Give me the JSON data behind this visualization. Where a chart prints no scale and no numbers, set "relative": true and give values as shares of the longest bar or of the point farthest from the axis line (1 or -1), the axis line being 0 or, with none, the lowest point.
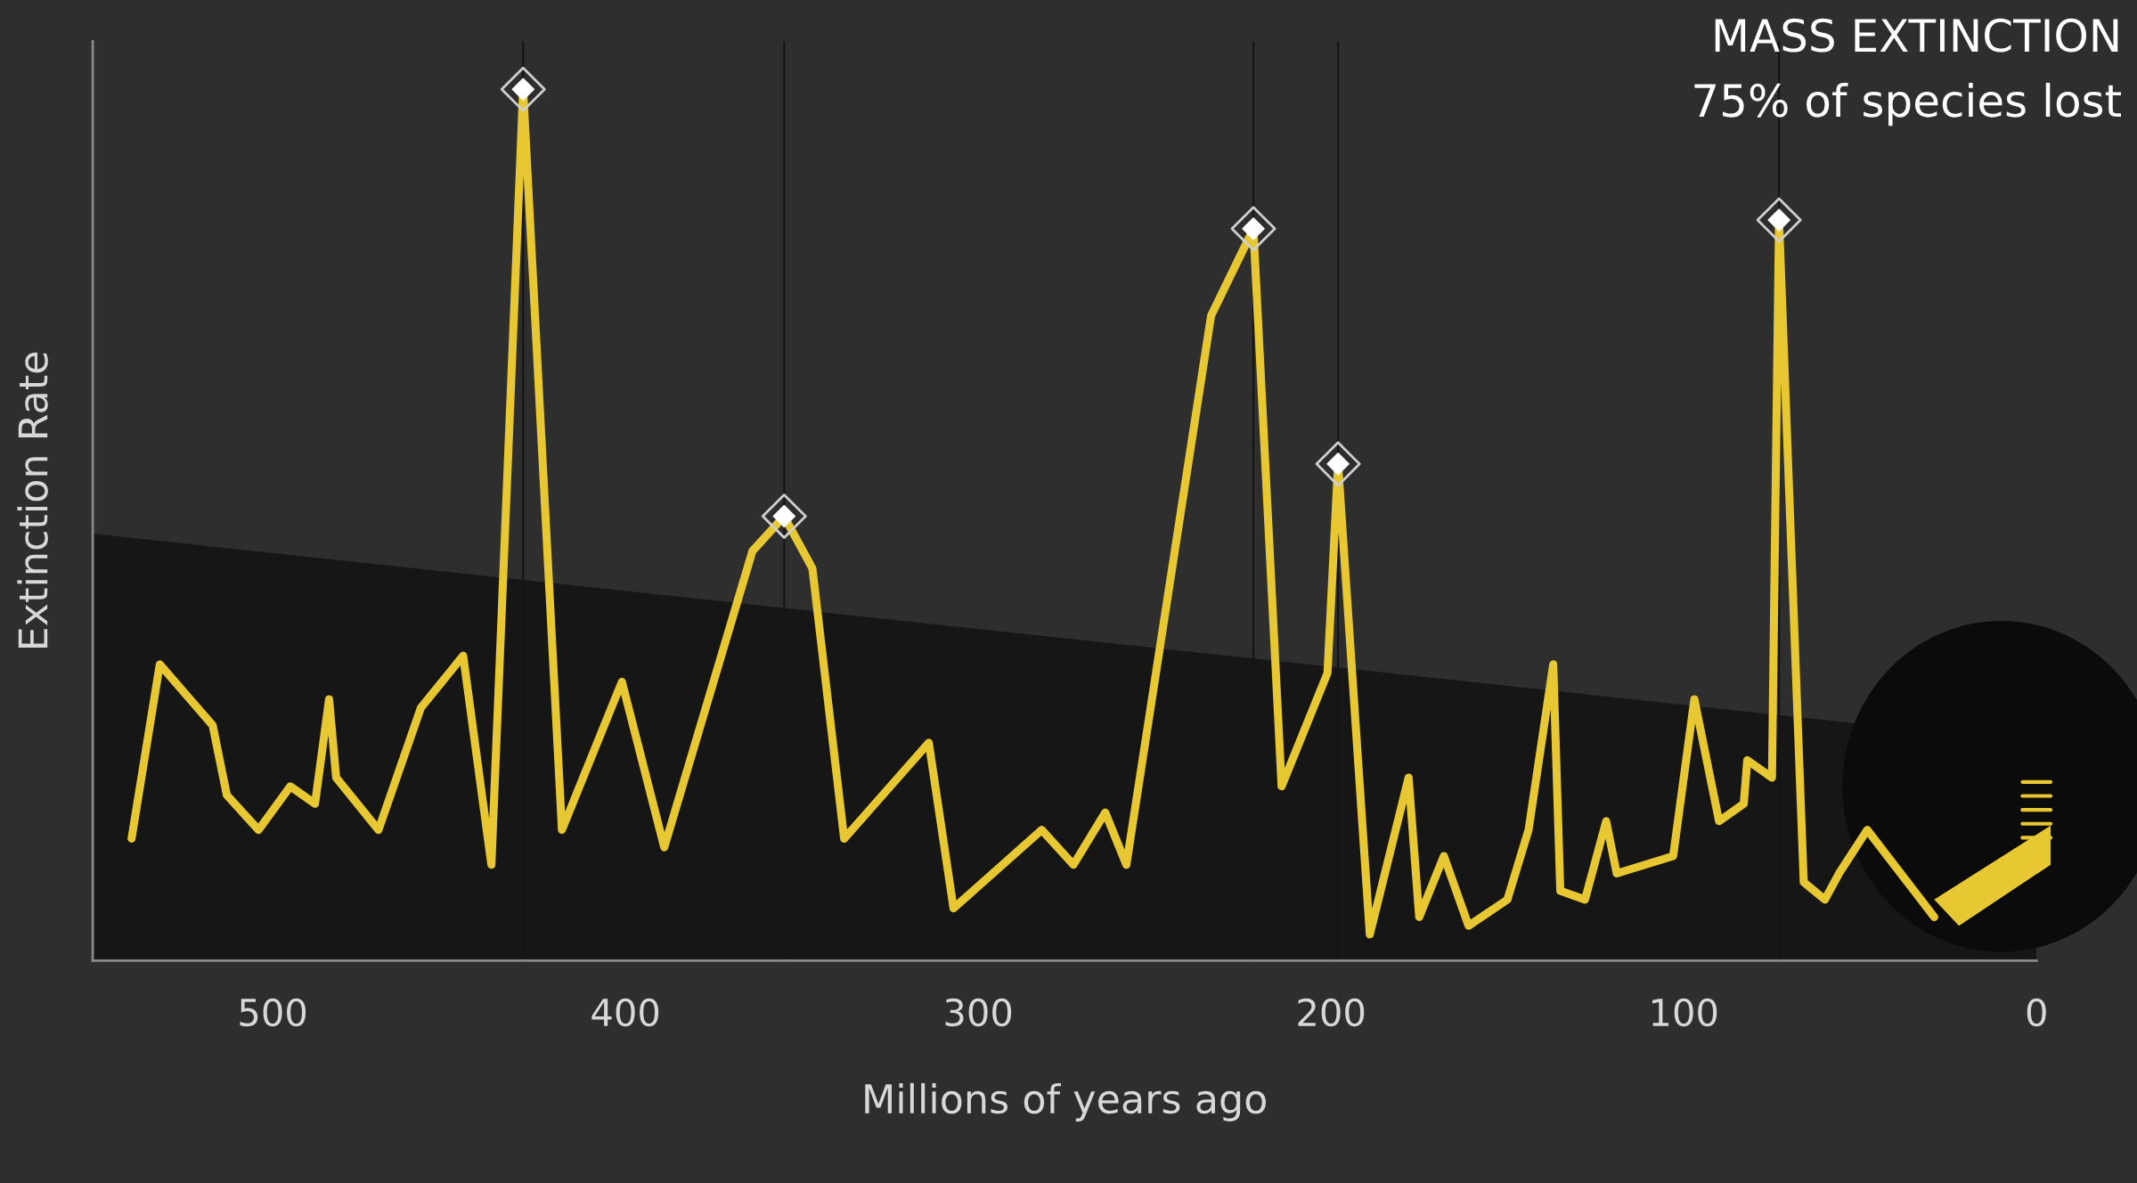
{
  "chart_data": {
    "type": "line",
    "relative": true,
    "xlabel": "Millions of years ago",
    "ylabel": "Extinction Rate",
    "annotations": [
      "MASS EXTINCTION",
      "75% of species lost"
    ],
    "xlim": [
      551,
      0
    ],
    "xticks": [
      500,
      400,
      300,
      200,
      100,
      0
    ],
    "grid": false,
    "legend": false,
    "tick_labels": "x",
    "series": [
      {
        "color": "#e8c832",
        "marker": "none",
        "line_style": "solid",
        "x": [
          540,
          532,
          517,
          513,
          504,
          495,
          488,
          484,
          482,
          470,
          458,
          446,
          438,
          429,
          418,
          401,
          389,
          364,
          355,
          347,
          338,
          314,
          307,
          282,
          273,
          264,
          258,
          234,
          222,
          214,
          201,
          198,
          189,
          178,
          175,
          168,
          161,
          150,
          144,
          137,
          135,
          128,
          122,
          119,
          103,
          97,
          90,
          83,
          82,
          75,
          73,
          66,
          60,
          56,
          48,
          29
        ],
        "values": [
          0.14,
          0.34,
          0.27,
          0.19,
          0.15,
          0.2,
          0.18,
          0.3,
          0.21,
          0.15,
          0.29,
          0.35,
          0.11,
          1.0,
          0.15,
          0.32,
          0.13,
          0.47,
          0.51,
          0.45,
          0.14,
          0.25,
          0.06,
          0.15,
          0.11,
          0.17,
          0.11,
          0.74,
          0.84,
          0.2,
          0.33,
          0.57,
          0.03,
          0.21,
          0.05,
          0.12,
          0.04,
          0.07,
          0.15,
          0.34,
          0.08,
          0.07,
          0.16,
          0.1,
          0.12,
          0.3,
          0.16,
          0.18,
          0.23,
          0.21,
          0.85,
          0.09,
          0.07,
          0.1,
          0.15,
          0.05
        ]
      },
      {
        "type": "scatter",
        "color": "#ffffff",
        "marker": "diamond",
        "x": [
          429,
          355,
          222,
          198,
          73
        ],
        "values": [
          1.0,
          0.51,
          0.84,
          0.57,
          0.85
        ]
      }
    ],
    "ref_lines": [
      {
        "axis": "x",
        "value": 429,
        "color": "#141414"
      },
      {
        "axis": "x",
        "value": 355,
        "color": "#141414"
      },
      {
        "axis": "x",
        "value": 222,
        "color": "#141414"
      },
      {
        "axis": "x",
        "value": 198,
        "color": "#141414"
      },
      {
        "axis": "x",
        "value": 73,
        "color": "#141414"
      }
    ]
  }
}
